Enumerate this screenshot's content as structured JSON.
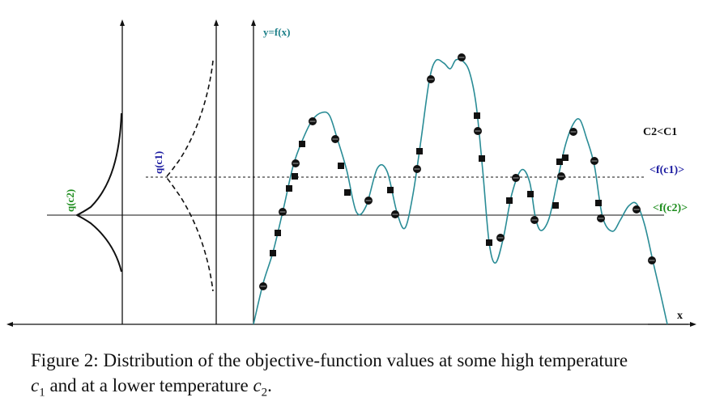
{
  "labels": {
    "y_axis": "y=f(x)",
    "x_axis": "x",
    "q_c1": "q(c1)",
    "q_c2": "q(c2)",
    "f_c1": "<f(c1)>",
    "f_c2": "<f(c2)>",
    "relation": "C2<C1"
  },
  "caption": {
    "prefix": "Figure 2: Distribution of the objective-function values at some high temperature",
    "c1_letter": "c",
    "c1_sub": "1",
    "middle": " and at a lower temperature ",
    "c2_letter": "c",
    "c2_sub": "2",
    "suffix": "."
  },
  "colors": {
    "curve": "#2a8c96",
    "y_label": "#1b7f88",
    "c1_label": "#1a1aa0",
    "c2_label": "#1c8c1c",
    "ink": "#111111"
  },
  "markers": {
    "circle_description": "samples at temperature c2 (circles)",
    "square_description": "samples at temperature c1 (squares)"
  }
}
